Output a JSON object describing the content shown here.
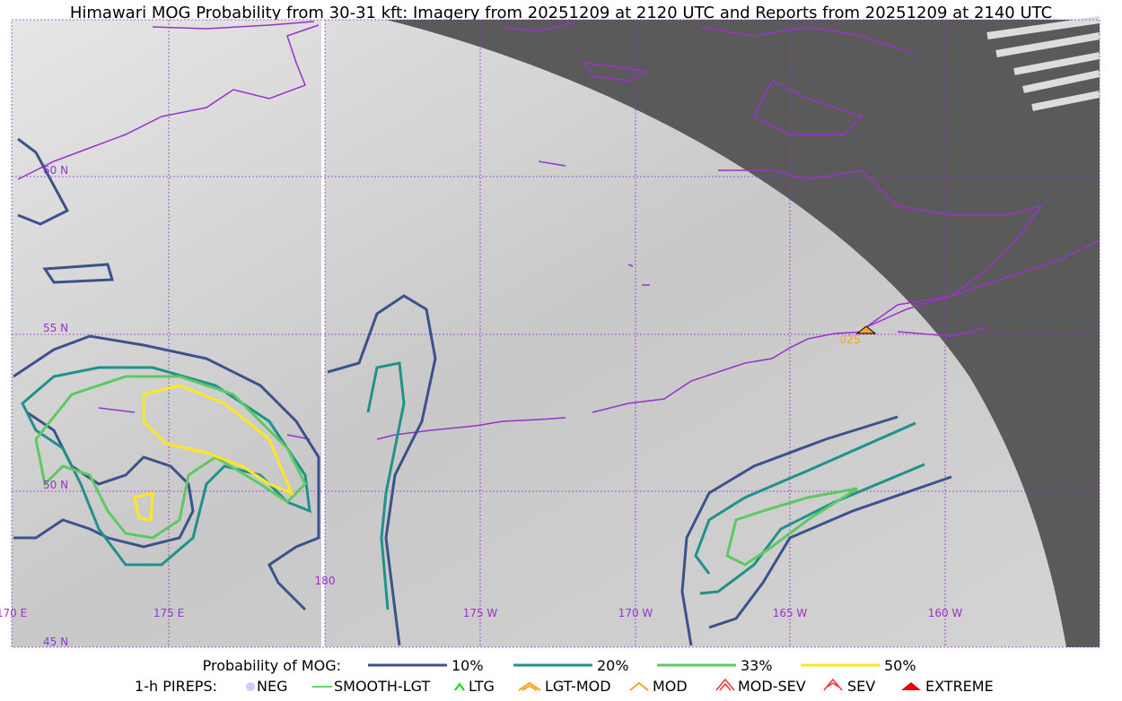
{
  "title": "Himawari MOG Probability from 30-31 kft: Imagery from 20251209 at 2120 UTC and Reports from 20251209 at 2140 UTC",
  "grid_labels": {
    "lat": [
      "60 N",
      "55 N",
      "50 N",
      "45 N"
    ],
    "lon": [
      "170 E",
      "175 E",
      "180",
      "175 W",
      "170 W",
      "165 W",
      "160 W"
    ]
  },
  "report_label": "025",
  "legend": {
    "probability": {
      "title": "Probability of MOG:",
      "items": [
        "10%",
        "20%",
        "33%",
        "50%"
      ]
    },
    "pireps": {
      "title": "1-h PIREPS:",
      "items": [
        "NEG",
        "SMOOTH-LGT",
        "LTG",
        "LGT-MOD",
        "MOD",
        "MOD-SEV",
        "SEV",
        "EXTREME"
      ]
    }
  }
}
